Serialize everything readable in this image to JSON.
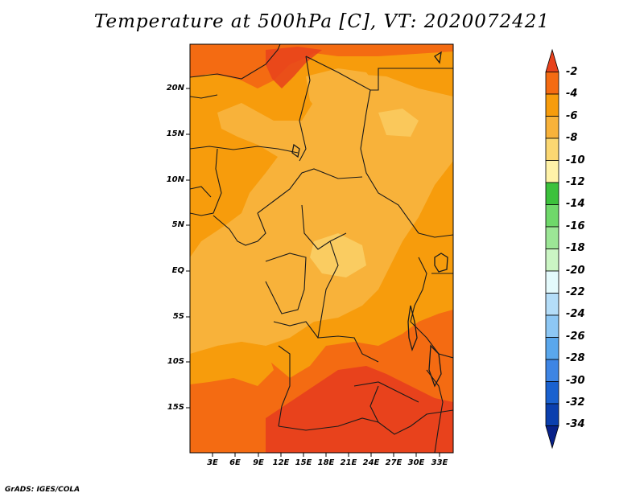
{
  "title": "Temperature at 500hPa [C], VT: 2020072421",
  "credit": "GrADS: IGES/COLA",
  "map": {
    "variable": "Temperature at 500hPa",
    "units": "C",
    "valid_time": "2020072421",
    "lat_ticks": [
      "20N",
      "15N",
      "10N",
      "5N",
      "EQ",
      "5S",
      "10S",
      "15S"
    ],
    "lon_ticks": [
      "3E",
      "6E",
      "9E",
      "12E",
      "15E",
      "18E",
      "21E",
      "24E",
      "27E",
      "30E",
      "33E"
    ]
  },
  "colorbar": {
    "labels": [
      "-2",
      "-4",
      "-6",
      "-8",
      "-10",
      "-12",
      "-14",
      "-16",
      "-18",
      "-20",
      "-22",
      "-24",
      "-26",
      "-28",
      "-30",
      "-32",
      "-34"
    ],
    "colors": [
      "#e8421c",
      "#f46b12",
      "#f79c0c",
      "#f8b23a",
      "#fbd772",
      "#fff2a8",
      "#3cc13c",
      "#6fd86a",
      "#9ce696",
      "#cbf5c4",
      "#e4fafc",
      "#b4ddf8",
      "#8dc7f4",
      "#5aa7ec",
      "#3e85e4",
      "#1a61cf",
      "#0b3fae",
      "#082189"
    ]
  },
  "colors": {
    "warmest": "#e8421c",
    "warm": "#f46b12",
    "mid": "#f79c0c",
    "cool": "#f8b23a",
    "border": "#1a1a1a"
  }
}
